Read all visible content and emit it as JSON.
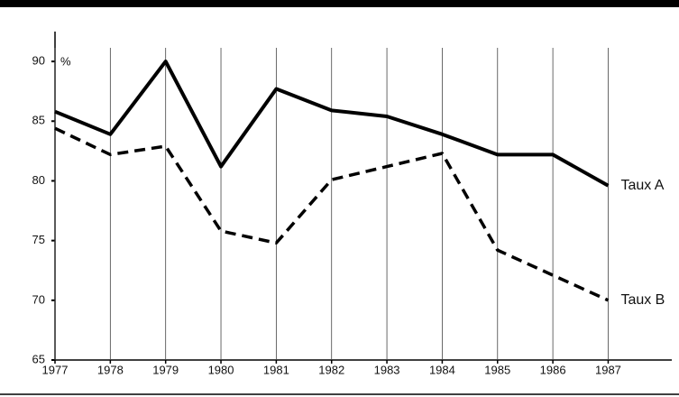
{
  "chart_data": {
    "type": "line",
    "y_label": "%",
    "x": [
      1977,
      1978,
      1979,
      1980,
      1981,
      1982,
      1983,
      1984,
      1985,
      1986,
      1987
    ],
    "series": [
      {
        "name": "Taux A",
        "color": "#000000",
        "style": "solid",
        "values": [
          85.8,
          83.9,
          90,
          81.2,
          87.7,
          85.9,
          85.4,
          83.9,
          82.2,
          82.2,
          79.6
        ]
      },
      {
        "name": "Taux B",
        "color": "#000000",
        "style": "dashed",
        "values": [
          84.4,
          82.2,
          82.9,
          75.8,
          74.8,
          80.1,
          81.2,
          82.3,
          74.2,
          72.1,
          70
        ]
      }
    ],
    "xlim": [
      1977,
      1988.15
    ],
    "xticks": [
      1977,
      1978,
      1979,
      1980,
      1981,
      1982,
      1983,
      1984,
      1985,
      1986,
      1987
    ],
    "ylim": [
      65,
      92.5
    ],
    "yticks": [
      65,
      70,
      75,
      80,
      85,
      90
    ],
    "grid": true
  }
}
